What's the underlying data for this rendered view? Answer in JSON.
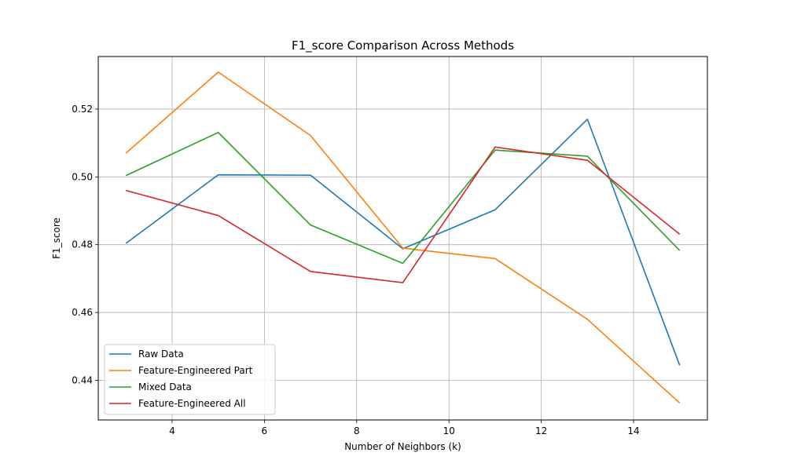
{
  "chart_data": {
    "type": "line",
    "title": "F1_score Comparison Across Methods",
    "xlabel": "Number of Neighbors (k)",
    "ylabel": "F1_score",
    "x": [
      3,
      5,
      7,
      9,
      11,
      13,
      15
    ],
    "xlim": [
      2.4,
      15.6
    ],
    "ylim": [
      0.4283,
      0.5355
    ],
    "xticks": [
      4,
      6,
      8,
      10,
      12,
      14
    ],
    "yticks": [
      0.44,
      0.46,
      0.48,
      0.5,
      0.52
    ],
    "ytick_labels": [
      "0.44",
      "0.46",
      "0.48",
      "0.50",
      "0.52"
    ],
    "grid": true,
    "legend_position": "lower-left",
    "series": [
      {
        "name": "Raw Data",
        "color": "#1f77b4",
        "values": [
          0.4804,
          0.5006,
          0.5005,
          0.4788,
          0.4903,
          0.517,
          0.4444
        ]
      },
      {
        "name": "Feature-Engineered Part",
        "color": "#ff7f0e",
        "values": [
          0.507,
          0.5309,
          0.5122,
          0.479,
          0.4759,
          0.458,
          0.4333
        ]
      },
      {
        "name": "Mixed Data",
        "color": "#2ca02c",
        "values": [
          0.5004,
          0.5131,
          0.4858,
          0.4745,
          0.5079,
          0.5061,
          0.4783
        ]
      },
      {
        "name": "Feature-Engineered All",
        "color": "#d62728",
        "values": [
          0.496,
          0.4886,
          0.4721,
          0.4688,
          0.5088,
          0.5049,
          0.4831
        ]
      }
    ]
  }
}
